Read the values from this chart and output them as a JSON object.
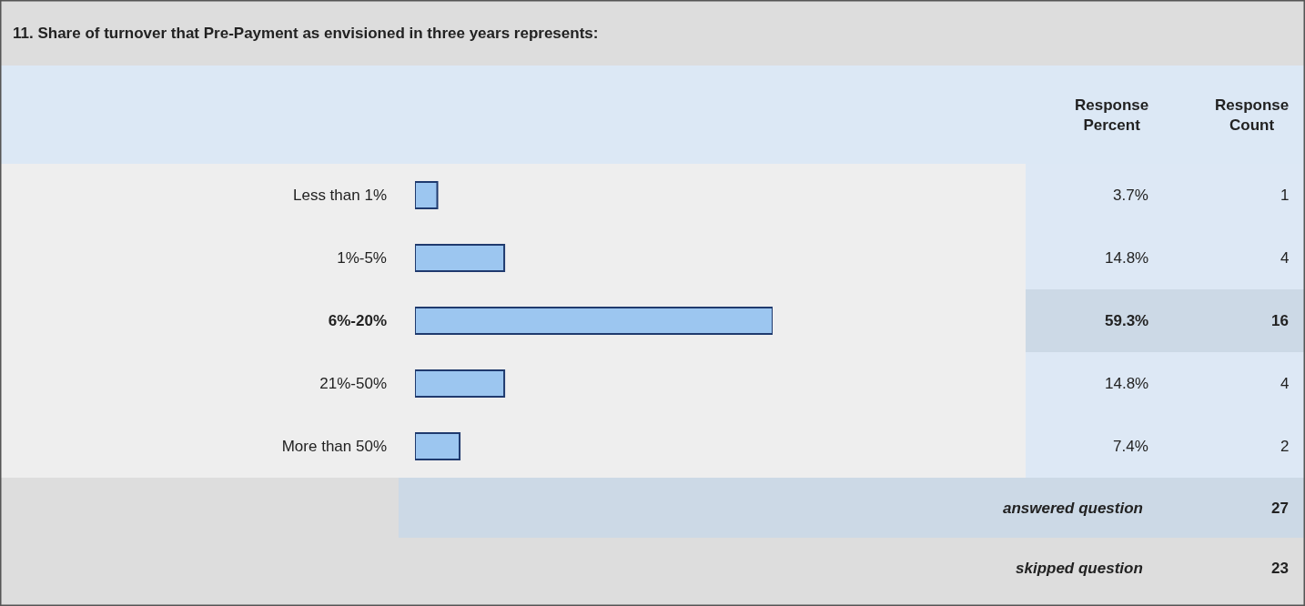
{
  "chart_data": {
    "type": "bar",
    "orientation": "horizontal",
    "title": "11. Share of turnover that Pre-Payment as envisioned in three years represents:",
    "categories": [
      "Less than 1%",
      "1%-5%",
      "6%-20%",
      "21%-50%",
      "More than 50%"
    ],
    "values": [
      3.7,
      14.8,
      59.3,
      14.8,
      7.4
    ],
    "value_labels": [
      "3.7%",
      "14.8%",
      "59.3%",
      "14.8%",
      "7.4%"
    ],
    "color": "#9cc6f0",
    "tick_labels": "y",
    "grid": false,
    "annotations": [
      "Response Percent",
      "Response Count",
      "1",
      "4",
      "16",
      "4",
      "2",
      "answered question",
      "27",
      "skipped question",
      "23"
    ]
  }
}
